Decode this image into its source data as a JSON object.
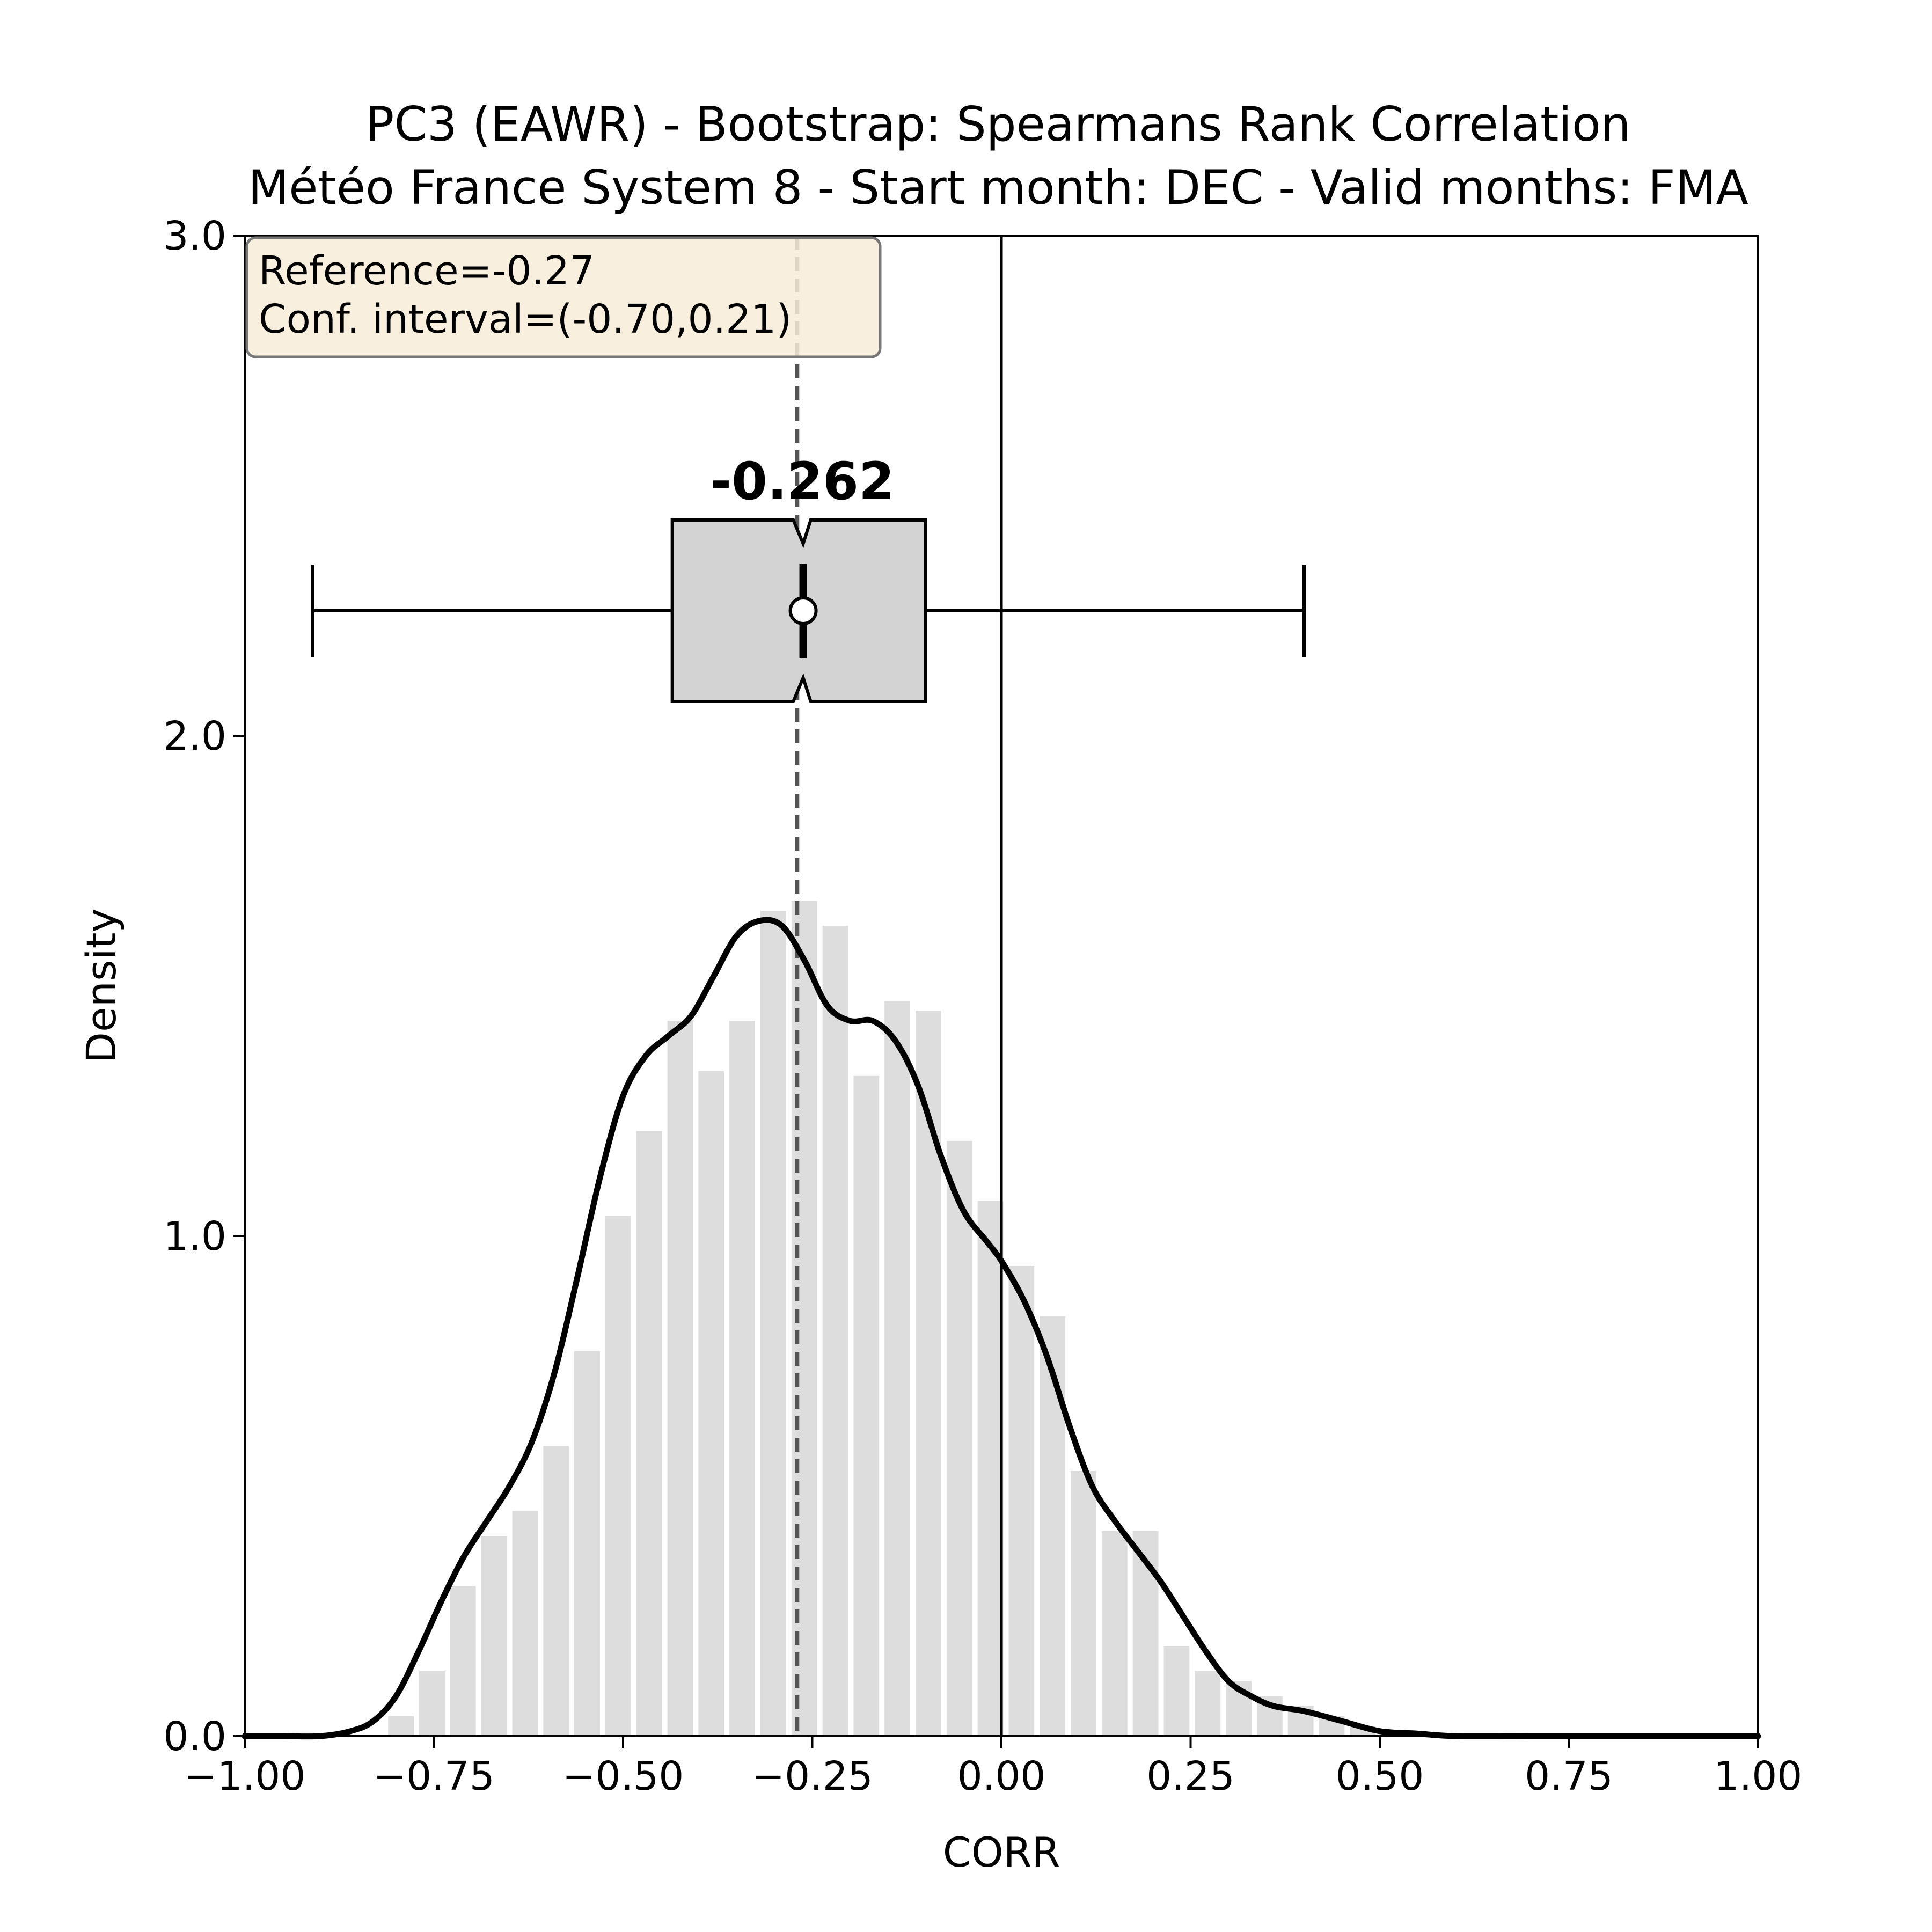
{
  "chart_data": {
    "type": "bar",
    "title": "PC3 (EAWR) - Bootstrap: Spearmans Rank Correlation",
    "subtitle": "Météo France System 8 - Start month: DEC - Valid months: FMA",
    "xlabel": "CORR",
    "ylabel": "Density",
    "xlim": [
      -1.0,
      1.0
    ],
    "ylim": [
      0.0,
      3.0
    ],
    "x_ticks": [
      -1.0,
      -0.75,
      -0.5,
      -0.25,
      0.0,
      0.25,
      0.5,
      0.75,
      1.0
    ],
    "x_tick_labels": [
      "−1.00",
      "−0.75",
      "−0.50",
      "−0.25",
      "0.00",
      "0.25",
      "0.50",
      "0.75",
      "1.00"
    ],
    "y_ticks": [
      0.0,
      1.0,
      2.0,
      3.0
    ],
    "y_tick_labels": [
      "0.0",
      "1.0",
      "2.0",
      "3.0"
    ],
    "grid": false,
    "histogram": {
      "bin_width": 0.041,
      "bins": [
        {
          "x": -0.814,
          "density": 0.04
        },
        {
          "x": -0.773,
          "density": 0.13
        },
        {
          "x": -0.732,
          "density": 0.3
        },
        {
          "x": -0.691,
          "density": 0.4
        },
        {
          "x": -0.65,
          "density": 0.45
        },
        {
          "x": -0.609,
          "density": 0.58
        },
        {
          "x": -0.568,
          "density": 0.77
        },
        {
          "x": -0.527,
          "density": 1.04
        },
        {
          "x": -0.486,
          "density": 1.21
        },
        {
          "x": -0.445,
          "density": 1.43
        },
        {
          "x": -0.404,
          "density": 1.33
        },
        {
          "x": -0.363,
          "density": 1.43
        },
        {
          "x": -0.322,
          "density": 1.65
        },
        {
          "x": -0.281,
          "density": 1.67
        },
        {
          "x": -0.24,
          "density": 1.62
        },
        {
          "x": -0.199,
          "density": 1.32
        },
        {
          "x": -0.158,
          "density": 1.47
        },
        {
          "x": -0.117,
          "density": 1.45
        },
        {
          "x": -0.076,
          "density": 1.19
        },
        {
          "x": -0.035,
          "density": 1.07
        },
        {
          "x": 0.006,
          "density": 0.94
        },
        {
          "x": 0.047,
          "density": 0.84
        },
        {
          "x": 0.088,
          "density": 0.53
        },
        {
          "x": 0.129,
          "density": 0.41
        },
        {
          "x": 0.17,
          "density": 0.41
        },
        {
          "x": 0.211,
          "density": 0.18
        },
        {
          "x": 0.252,
          "density": 0.13
        },
        {
          "x": 0.293,
          "density": 0.11
        },
        {
          "x": 0.334,
          "density": 0.08
        },
        {
          "x": 0.375,
          "density": 0.06
        },
        {
          "x": 0.416,
          "density": 0.04
        },
        {
          "x": 0.457,
          "density": 0.02
        }
      ],
      "color": "#dddddd"
    },
    "kde": {
      "x": [
        -1.0,
        -0.95,
        -0.9,
        -0.86,
        -0.83,
        -0.8,
        -0.77,
        -0.74,
        -0.71,
        -0.68,
        -0.65,
        -0.62,
        -0.59,
        -0.56,
        -0.53,
        -0.5,
        -0.47,
        -0.44,
        -0.41,
        -0.38,
        -0.35,
        -0.32,
        -0.29,
        -0.26,
        -0.23,
        -0.2,
        -0.17,
        -0.14,
        -0.11,
        -0.08,
        -0.05,
        -0.02,
        0.0,
        0.03,
        0.06,
        0.09,
        0.12,
        0.15,
        0.18,
        0.21,
        0.24,
        0.27,
        0.3,
        0.33,
        0.36,
        0.4,
        0.45,
        0.5,
        0.55,
        0.6,
        0.7,
        0.8,
        0.9,
        1.0
      ],
      "y": [
        0.0,
        0.0,
        0.0,
        0.01,
        0.03,
        0.08,
        0.17,
        0.27,
        0.36,
        0.43,
        0.5,
        0.59,
        0.73,
        0.92,
        1.12,
        1.28,
        1.36,
        1.4,
        1.44,
        1.52,
        1.6,
        1.63,
        1.62,
        1.55,
        1.46,
        1.43,
        1.43,
        1.39,
        1.3,
        1.16,
        1.05,
        0.99,
        0.95,
        0.87,
        0.76,
        0.62,
        0.5,
        0.43,
        0.37,
        0.31,
        0.24,
        0.17,
        0.11,
        0.08,
        0.06,
        0.05,
        0.03,
        0.01,
        0.005,
        0.0,
        0.0,
        0.0,
        0.0,
        0.0
      ],
      "color": "#000000"
    },
    "boxplot": {
      "y_level": 2.25,
      "whisker_low": -0.91,
      "q1": -0.435,
      "median": -0.262,
      "q3": -0.1,
      "whisker_high": 0.4,
      "mean": -0.262,
      "notch_low": -0.275,
      "notch_high": -0.252,
      "box_color": "#d3d3d3"
    },
    "median_label": "-0.262",
    "reference_line": {
      "x": -0.27,
      "style": "dashed",
      "color": "#555555"
    },
    "zero_line": {
      "x": 0.0,
      "color": "#000000"
    },
    "annotation": {
      "lines": [
        "Reference=-0.27",
        "Conf. interval=(-0.70,0.21)"
      ],
      "position": "top-left",
      "background": "#f8ecd8"
    }
  }
}
